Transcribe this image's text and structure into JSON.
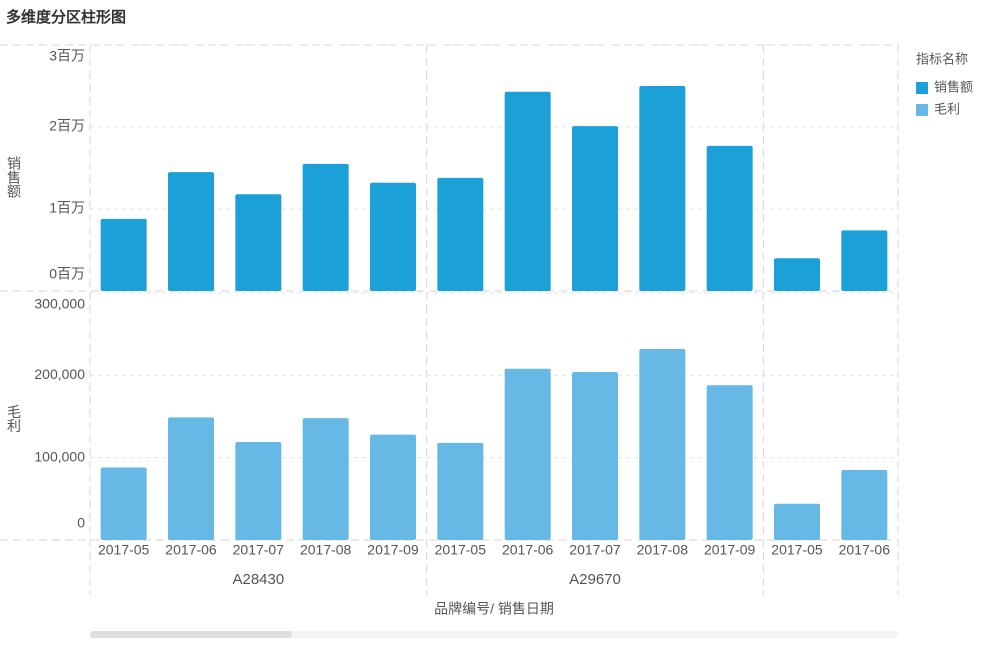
{
  "chart_data": {
    "type": "bar",
    "title": "多维度分区柱形图",
    "legend_title": "指标名称",
    "x_label": "品牌编号/ 销售日期",
    "groups": [
      {
        "name": "A28430",
        "categories": [
          "2017-05",
          "2017-06",
          "2017-07",
          "2017-08",
          "2017-09"
        ]
      },
      {
        "name": "A29670",
        "categories": [
          "2017-05",
          "2017-06",
          "2017-07",
          "2017-08",
          "2017-09"
        ]
      },
      {
        "name": null,
        "categories": [
          "2017-05",
          "2017-06"
        ]
      }
    ],
    "panels": [
      {
        "y_label": "销售额",
        "ylim": [
          0,
          3000000
        ],
        "yticks": [
          {
            "value": 0,
            "label": "0百万"
          },
          {
            "value": 1000000,
            "label": "1百万"
          },
          {
            "value": 2000000,
            "label": "2百万"
          },
          {
            "value": 3000000,
            "label": "3百万"
          }
        ],
        "series": [
          {
            "name": "销售额",
            "color": "#1ba0d8",
            "values": [
              [
                880000,
                1450000,
                1180000,
                1550000,
                1320000
              ],
              [
                1380000,
                2430000,
                2010000,
                2500000,
                1770000
              ],
              [
                400000,
                740000
              ]
            ]
          }
        ]
      },
      {
        "y_label": "毛利",
        "ylim": [
          0,
          300000
        ],
        "yticks": [
          0,
          {
            "value": 100000,
            "label": "100,000"
          },
          {
            "value": 200000,
            "label": "200,000"
          },
          {
            "value": 300000,
            "label": "300,000"
          }
        ],
        "series": [
          {
            "name": "毛利",
            "color": "#66b9e5",
            "values": [
              [
                88000,
                149000,
                119000,
                148000,
                128000
              ],
              [
                118000,
                208000,
                204000,
                232000,
                188000
              ],
              [
                44000,
                85000
              ]
            ]
          }
        ]
      }
    ],
    "grid": true
  }
}
